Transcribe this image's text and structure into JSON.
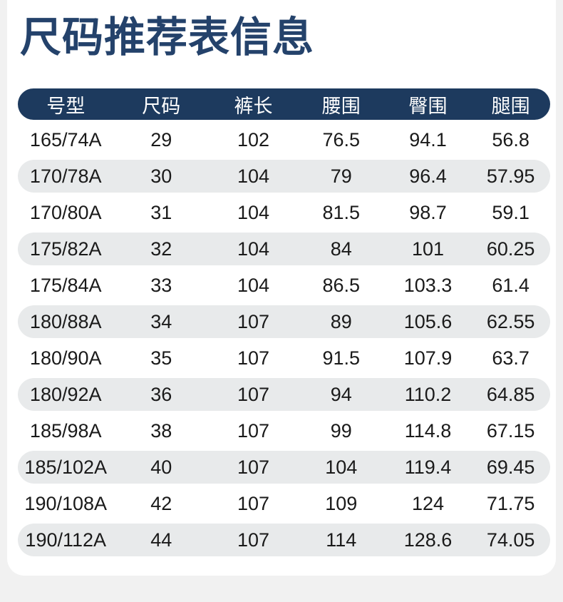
{
  "page": {
    "title": "尺码推荐表信息"
  },
  "size_chart": {
    "columns": [
      {
        "key": "model",
        "label": "号型"
      },
      {
        "key": "size",
        "label": "尺码"
      },
      {
        "key": "pants-length",
        "label": "裤长"
      },
      {
        "key": "waist",
        "label": "腰围"
      },
      {
        "key": "hip",
        "label": "臀围"
      },
      {
        "key": "leg",
        "label": "腿围"
      }
    ],
    "rows": [
      [
        "165/74A",
        "29",
        "102",
        "76.5",
        "94.1",
        "56.8"
      ],
      [
        "170/78A",
        "30",
        "104",
        "79",
        "96.4",
        "57.95"
      ],
      [
        "170/80A",
        "31",
        "104",
        "81.5",
        "98.7",
        "59.1"
      ],
      [
        "175/82A",
        "32",
        "104",
        "84",
        "101",
        "60.25"
      ],
      [
        "175/84A",
        "33",
        "104",
        "86.5",
        "103.3",
        "61.4"
      ],
      [
        "180/88A",
        "34",
        "107",
        "89",
        "105.6",
        "62.55"
      ],
      [
        "180/90A",
        "35",
        "107",
        "91.5",
        "107.9",
        "63.7"
      ],
      [
        "180/92A",
        "36",
        "107",
        "94",
        "110.2",
        "64.85"
      ],
      [
        "185/98A",
        "38",
        "107",
        "99",
        "114.8",
        "67.15"
      ],
      [
        "185/102A",
        "40",
        "107",
        "104",
        "119.4",
        "69.45"
      ],
      [
        "190/108A",
        "42",
        "107",
        "109",
        "124",
        "71.75"
      ],
      [
        "190/112A",
        "44",
        "107",
        "114",
        "128.6",
        "74.05"
      ]
    ]
  },
  "colors": {
    "title_navy": "#24426b",
    "header_navy": "#1d3a5e",
    "alt_row_gray": "#e8eaeb",
    "page_background": "#f1f1f1",
    "card_background": "#ffffff",
    "data_text": "#1a1a1a"
  }
}
